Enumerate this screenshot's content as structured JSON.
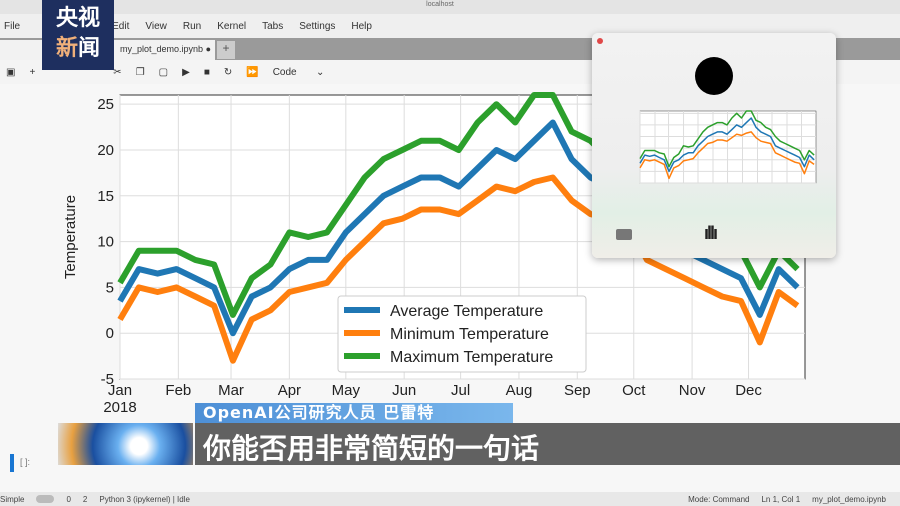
{
  "browser": {
    "url": "localhost"
  },
  "menu": [
    "File",
    "Edit",
    "View",
    "Run",
    "Kernel",
    "Tabs",
    "Settings",
    "Help"
  ],
  "tab": {
    "label": "my_plot_demo.ipynb"
  },
  "toolbar": {
    "cell_type": "Code"
  },
  "cell": {
    "prompt": "[ ]:"
  },
  "status": {
    "mode_label": "Simple",
    "kernel": "Python 3 (ipykernel) | Idle",
    "mode": "Mode: Command",
    "position": "Ln 1, Col 1",
    "file": "my_plot_demo.ipynb",
    "counts": [
      "0",
      "2"
    ]
  },
  "logo": {
    "text": "央视新闻"
  },
  "caption": {
    "speaker": "OpenAI公司研究人员 巴雷特",
    "subtitle": "你能否用非常简短的一句话"
  },
  "colors": {
    "avg": "#1f77b4",
    "min": "#ff7f0e",
    "max": "#2ca02c",
    "logo_bg": "#1e2f5f",
    "name_strip": "#4d8fd6"
  },
  "icons": [
    "save-icon",
    "plus-icon",
    "cut-icon",
    "copy-icon",
    "paste-icon",
    "run-icon",
    "stop-icon",
    "restart-icon",
    "fast-forward-icon",
    "screen-icon",
    "waveform-icon",
    "close-dot-icon"
  ],
  "chart_data": {
    "type": "line",
    "ylabel": "Temperature",
    "xlabel": "",
    "ylim": [
      -5,
      26
    ],
    "yticks": [
      -5,
      0,
      5,
      10,
      15,
      20,
      25
    ],
    "xtick_labels": [
      "Jan\n2018",
      "Feb",
      "Mar",
      "Apr",
      "May",
      "Jun",
      "Jul",
      "Aug",
      "Sep",
      "Oct",
      "Nov",
      "Dec"
    ],
    "grid": true,
    "legend": "lower-center",
    "x": [
      "2018-01-01",
      "2018-01-11",
      "2018-01-21",
      "2018-01-31",
      "2018-02-10",
      "2018-02-20",
      "2018-03-02",
      "2018-03-12",
      "2018-03-22",
      "2018-04-01",
      "2018-04-11",
      "2018-04-21",
      "2018-05-01",
      "2018-05-11",
      "2018-05-21",
      "2018-05-31",
      "2018-06-10",
      "2018-06-20",
      "2018-06-30",
      "2018-07-10",
      "2018-07-20",
      "2018-07-30",
      "2018-08-09",
      "2018-08-19",
      "2018-08-29",
      "2018-09-08",
      "2018-09-18",
      "2018-09-28",
      "2018-10-08",
      "2018-10-18",
      "2018-10-28",
      "2018-11-07",
      "2018-11-17",
      "2018-11-27",
      "2018-12-07",
      "2018-12-17",
      "2018-12-27"
    ],
    "series": [
      {
        "name": "Average Temperature",
        "values": [
          3.5,
          7,
          6.5,
          7,
          6,
          5,
          0,
          4,
          5,
          7,
          8,
          8,
          11,
          13,
          15,
          16,
          17,
          17,
          16,
          18,
          20,
          19,
          21,
          23,
          19,
          17,
          16,
          15,
          11,
          10,
          9,
          8,
          7,
          6,
          2,
          7,
          5
        ]
      },
      {
        "name": "Minimum Temperature",
        "values": [
          1.5,
          5,
          4.5,
          5,
          4,
          3,
          -3,
          1.5,
          2.5,
          4.5,
          5,
          5.5,
          8,
          10,
          12,
          12.5,
          13.5,
          13.5,
          13,
          14.5,
          16,
          15.5,
          16.5,
          17,
          14.5,
          13,
          12.5,
          12,
          8,
          7,
          6,
          5,
          4,
          3.5,
          -1,
          4.5,
          3
        ]
      },
      {
        "name": "Maximum Temperature",
        "values": [
          5.5,
          9,
          9,
          9,
          8,
          7.5,
          2,
          6,
          7.5,
          11,
          10.5,
          11,
          14,
          17,
          19,
          20,
          21,
          21,
          20,
          23,
          25,
          23,
          26,
          26,
          22,
          21,
          19,
          18,
          15,
          13,
          12,
          11,
          10,
          9,
          5,
          9,
          7
        ]
      }
    ]
  }
}
